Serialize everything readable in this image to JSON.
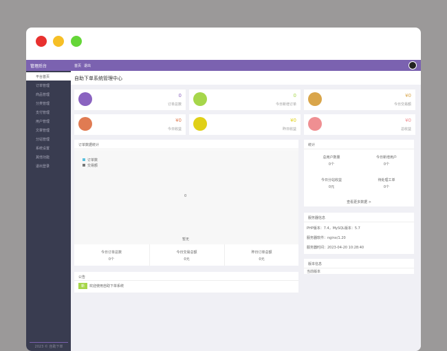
{
  "header": {
    "brand": "管理后台",
    "nav": [
      "首页",
      "退出"
    ]
  },
  "sidebar": {
    "items": [
      "平台首页",
      "订单管理",
      "商品管理",
      "分类管理",
      "支付管理",
      "用户管理",
      "文章管理",
      "分站管理",
      "系统设置",
      "其他功能",
      "退出登录"
    ],
    "footer": "2023 © 自助下单"
  },
  "page": {
    "title": "自助下单系统管理中心"
  },
  "stats": [
    {
      "value": "0",
      "label": "订单总数"
    },
    {
      "value": "0",
      "label": "今日新增订单"
    },
    {
      "value": "¥0",
      "label": "今日交易额"
    },
    {
      "value": "¥0",
      "label": "今日收益"
    },
    {
      "value": "¥0",
      "label": "昨日收益"
    },
    {
      "value": "¥0",
      "label": "总收益"
    }
  ],
  "chart_panel": {
    "title": "订单数据统计",
    "legend": [
      "订单数",
      "交易额"
    ],
    "empty": "0",
    "axis": "暂无",
    "totals": [
      {
        "label": "今日订单总数",
        "value": "0个"
      },
      {
        "label": "今日交易总额",
        "value": "0元"
      },
      {
        "label": "昨日订单总额",
        "value": "0元"
      }
    ]
  },
  "notice": {
    "title": "公告",
    "badge": "新",
    "text": "欢迎使用自助下单系统"
  },
  "summary": {
    "title": "统计",
    "items": [
      {
        "label": "总用户数量",
        "value": "0个"
      },
      {
        "label": "今日新增用户",
        "value": "0个"
      },
      {
        "label": "今日分站收益",
        "value": "0元"
      },
      {
        "label": "待处理工单",
        "value": "0个"
      }
    ],
    "link": "查看更多数据 >"
  },
  "server": {
    "title": "服务器信息",
    "lines": [
      "PHP版本：7.4，MySQL版本：5.7",
      "服务器软件：nginx/1.20",
      "服务器时间：2023-04-20 10:28:40"
    ]
  },
  "version": {
    "title": "版本信息",
    "text": "当前版本"
  }
}
